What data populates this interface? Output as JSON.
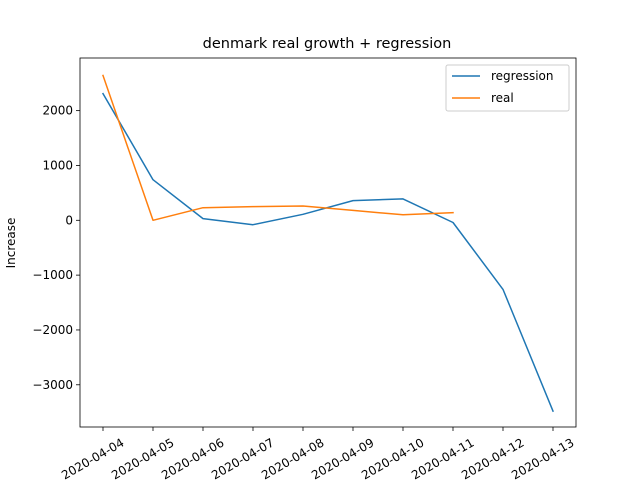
{
  "chart_data": {
    "type": "line",
    "title": "denmark real growth + regression",
    "xlabel": "",
    "ylabel": "Increase",
    "x": [
      "2020-04-04",
      "2020-04-05",
      "2020-04-06",
      "2020-04-07",
      "2020-04-08",
      "2020-04-09",
      "2020-04-10",
      "2020-04-11",
      "2020-04-12",
      "2020-04-13"
    ],
    "yticks": [
      2000,
      1000,
      0,
      -1000,
      -2000,
      -3000
    ],
    "ytick_labels": [
      "2000",
      "1000",
      "0",
      "−1000",
      "−2000",
      "−3000"
    ],
    "ylim": [
      -3770,
      2960
    ],
    "grid": false,
    "legend": "top-right",
    "series": [
      {
        "name": "regression",
        "color": "#1f77b4",
        "values": [
          2310,
          740,
          30,
          -80,
          110,
          360,
          390,
          -40,
          -1260,
          -3480
        ]
      },
      {
        "name": "real",
        "color": "#ff7f0e",
        "values": [
          2640,
          0,
          230,
          250,
          260,
          180,
          100,
          140,
          null,
          null
        ]
      }
    ]
  }
}
